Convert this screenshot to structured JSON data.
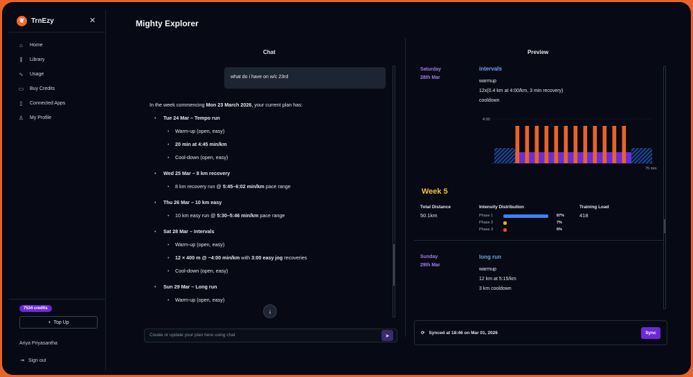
{
  "brand": {
    "name": "TrnEzy"
  },
  "sidebar": {
    "items": [
      {
        "label": "Home",
        "icon": "home-icon",
        "glyph": "⌂"
      },
      {
        "label": "Library",
        "icon": "library-icon",
        "glyph": "⫼"
      },
      {
        "label": "Usage",
        "icon": "activity-icon",
        "glyph": "∿"
      },
      {
        "label": "Buy Credits",
        "icon": "credit-card-icon",
        "glyph": "▭"
      },
      {
        "label": "Connected Apps",
        "icon": "phone-icon",
        "glyph": "▯"
      },
      {
        "label": "My Profile",
        "icon": "user-icon",
        "glyph": "♙"
      }
    ],
    "credits": "7534 credits",
    "topup_label": "Top Up",
    "user_name": "Ariya Priyasantha",
    "signout_label": "Sign out"
  },
  "header": {
    "title": "Mighty Explorer"
  },
  "chat": {
    "title": "Chat",
    "user_message": "what do i have on w/c 23rd",
    "intro_pre": "In the week commencing ",
    "intro_bold": "Mon 23 March 2026",
    "intro_post": ", your current plan has:",
    "days": [
      {
        "title": "Tue 24 Mar – Tempo run",
        "items": [
          {
            "pre": "Warm-up (open, easy)",
            "b1": "",
            "mid": "",
            "b2": "",
            "post": ""
          },
          {
            "pre": "",
            "b1": "20 min at 4:45 min/km",
            "mid": "",
            "b2": "",
            "post": ""
          },
          {
            "pre": "Cool-down (open, easy)",
            "b1": "",
            "mid": "",
            "b2": "",
            "post": ""
          }
        ]
      },
      {
        "title": "Wed 25 Mar – 8 km recovery",
        "items": [
          {
            "pre": "8 km recovery run @ ",
            "b1": "5:45–6:02 min/km",
            "mid": " pace range",
            "b2": "",
            "post": ""
          }
        ]
      },
      {
        "title": "Thu 26 Mar – 10 km easy",
        "items": [
          {
            "pre": "10 km easy run @ ",
            "b1": "5:30–5:46 min/km",
            "mid": " pace range",
            "b2": "",
            "post": ""
          }
        ]
      },
      {
        "title": "Sat 28 Mar – Intervals",
        "items": [
          {
            "pre": "Warm-up (open, easy)",
            "b1": "",
            "mid": "",
            "b2": "",
            "post": ""
          },
          {
            "pre": "",
            "b1": "12 × 400 m @ ~4:00 min/km",
            "mid": " with ",
            "b2": "3:00 easy jog",
            "post": " recoveries"
          },
          {
            "pre": "Cool-down (open, easy)",
            "b1": "",
            "mid": "",
            "b2": "",
            "post": ""
          }
        ]
      },
      {
        "title": "Sun 29 Mar – Long run",
        "items": [
          {
            "pre": "Warm-up (open, easy)",
            "b1": "",
            "mid": "",
            "b2": "",
            "post": ""
          }
        ]
      }
    ],
    "input_placeholder": "Create or update your plan here using chat"
  },
  "preview": {
    "title": "Preview",
    "saturday": {
      "day": "Saturday",
      "date": "28th Mar",
      "workout_title": "intervals",
      "lines": [
        "warmup",
        "12x(0.4 km at 4:00/km, 3 min recovery)",
        "cooldown"
      ]
    },
    "chart_data": {
      "type": "bar",
      "y_label": "4:00",
      "x_end_label": "75 min",
      "repeats": 12,
      "colors": {
        "work": "#e8632a",
        "recovery": "#6c2bd9",
        "warm": "#1f4fa8"
      }
    },
    "week": {
      "title": "Week 5",
      "total_distance_label": "Total Distance",
      "total_distance": "50.1km",
      "intensity_label": "Intensity Distribution",
      "phases": [
        {
          "name": "Phase 1",
          "pct": "87%",
          "value": 0.87,
          "color": "#3b82f6"
        },
        {
          "name": "Phase 2",
          "pct": "7%",
          "value": 0.07,
          "color": "#eab308"
        },
        {
          "name": "Phase 3",
          "pct": "6%",
          "value": 0.06,
          "color": "#ef4444"
        }
      ],
      "training_load_label": "Training Load",
      "training_load": "418"
    },
    "sunday": {
      "day": "Sunday",
      "date": "29th Mar",
      "workout_title": "long run",
      "lines": [
        "warmup",
        "12 km at 5:15/km",
        "3 km cooldown"
      ]
    },
    "sync_text": "Synced at 18:46 on Mar 01, 2026",
    "sync_button": "Sync"
  }
}
